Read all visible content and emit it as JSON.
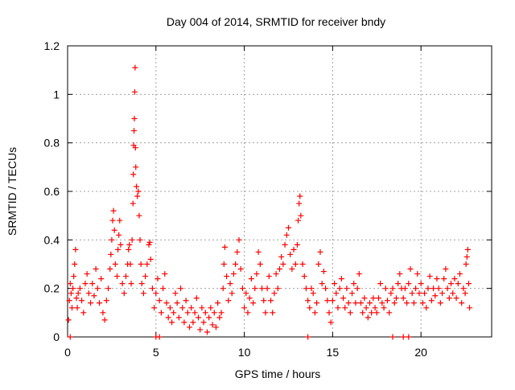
{
  "chart_data": {
    "type": "scatter",
    "title": "Day 004 of 2014, SRMTID for receiver bndy",
    "xlabel": "GPS time / hours",
    "ylabel": "SRMTID / TECUs",
    "xlim": [
      0,
      24
    ],
    "ylim": [
      0,
      1.2
    ],
    "x_ticks": [
      0,
      5,
      10,
      15,
      20
    ],
    "y_ticks": [
      0,
      0.2,
      0.4,
      0.6,
      0.8,
      1,
      1.2
    ],
    "x_tick_labels": [
      "0",
      "5",
      "10",
      "15",
      "20"
    ],
    "y_tick_labels": [
      "0",
      "0.2",
      "0.4",
      "0.6",
      "0.8",
      "1",
      "1.2"
    ],
    "grid": true,
    "marker": "+",
    "color": "#ff0000",
    "series": [
      {
        "name": "SRMTID",
        "points": [
          [
            0.05,
            0.07
          ],
          [
            0.1,
            0.15
          ],
          [
            0.15,
            0.22
          ],
          [
            0.2,
            0.18
          ],
          [
            0.25,
            0.12
          ],
          [
            0.3,
            0.2
          ],
          [
            0.35,
            0.25
          ],
          [
            0.4,
            0.3
          ],
          [
            0.45,
            0.36
          ],
          [
            0.5,
            0.16
          ],
          [
            0.55,
            0.12
          ],
          [
            0.6,
            0.18
          ],
          [
            0.7,
            0.2
          ],
          [
            0.8,
            0.15
          ],
          [
            0.9,
            0.1
          ],
          [
            1.0,
            0.22
          ],
          [
            1.1,
            0.26
          ],
          [
            1.2,
            0.18
          ],
          [
            1.3,
            0.14
          ],
          [
            1.4,
            0.22
          ],
          [
            1.5,
            0.17
          ],
          [
            1.6,
            0.28
          ],
          [
            1.7,
            0.2
          ],
          [
            1.8,
            0.14
          ],
          [
            1.9,
            0.24
          ],
          [
            2.0,
            0.1
          ],
          [
            2.1,
            0.07
          ],
          [
            2.2,
            0.15
          ],
          [
            2.3,
            0.2
          ],
          [
            2.4,
            0.28
          ],
          [
            2.45,
            0.34
          ],
          [
            2.5,
            0.4
          ],
          [
            2.55,
            0.48
          ],
          [
            2.6,
            0.52
          ],
          [
            2.65,
            0.44
          ],
          [
            2.7,
            0.3
          ],
          [
            2.8,
            0.25
          ],
          [
            2.85,
            0.36
          ],
          [
            2.9,
            0.42
          ],
          [
            2.95,
            0.48
          ],
          [
            3.0,
            0.38
          ],
          [
            3.1,
            0.22
          ],
          [
            3.2,
            0.18
          ],
          [
            3.3,
            0.25
          ],
          [
            3.4,
            0.3
          ],
          [
            3.45,
            0.36
          ],
          [
            3.5,
            0.38
          ],
          [
            3.55,
            0.3
          ],
          [
            3.6,
            0.22
          ],
          [
            3.65,
            0.4
          ],
          [
            3.7,
            0.55
          ],
          [
            3.72,
            0.67
          ],
          [
            3.74,
            0.79
          ],
          [
            3.76,
            0.85
          ],
          [
            3.78,
            0.9
          ],
          [
            3.8,
            1.01
          ],
          [
            3.82,
            1.11
          ],
          [
            3.84,
            0.78
          ],
          [
            3.86,
            0.7
          ],
          [
            3.9,
            0.62
          ],
          [
            3.95,
            0.58
          ],
          [
            4.0,
            0.6
          ],
          [
            4.05,
            0.5
          ],
          [
            4.1,
            0.4
          ],
          [
            4.15,
            0.3
          ],
          [
            4.2,
            0.22
          ],
          [
            4.3,
            0.18
          ],
          [
            4.4,
            0.25
          ],
          [
            4.5,
            0.3
          ],
          [
            4.6,
            0.38
          ],
          [
            4.65,
            0.39
          ],
          [
            4.7,
            0.32
          ],
          [
            4.8,
            0.2
          ],
          [
            4.9,
            0.12
          ],
          [
            5.0,
            0.18
          ],
          [
            5.1,
            0.24
          ],
          [
            5.2,
            0.15
          ],
          [
            5.3,
            0.1
          ],
          [
            5.4,
            0.2
          ],
          [
            5.5,
            0.26
          ],
          [
            5.6,
            0.14
          ],
          [
            5.7,
            0.08
          ],
          [
            5.8,
            0.12
          ],
          [
            5.9,
            0.06
          ],
          [
            6.0,
            0.1
          ],
          [
            6.1,
            0.18
          ],
          [
            6.2,
            0.14
          ],
          [
            6.3,
            0.08
          ],
          [
            6.4,
            0.2
          ],
          [
            6.5,
            0.12
          ],
          [
            6.6,
            0.06
          ],
          [
            6.7,
            0.15
          ],
          [
            6.8,
            0.1
          ],
          [
            6.9,
            0.04
          ],
          [
            7.0,
            0.12
          ],
          [
            7.1,
            0.06
          ],
          [
            7.2,
            0.1
          ],
          [
            7.3,
            0.16
          ],
          [
            7.4,
            0.08
          ],
          [
            7.5,
            0.03
          ],
          [
            7.6,
            0.12
          ],
          [
            7.7,
            0.06
          ],
          [
            7.8,
            0.1
          ],
          [
            7.9,
            0.02
          ],
          [
            8.0,
            0.08
          ],
          [
            8.1,
            0.12
          ],
          [
            8.2,
            0.05
          ],
          [
            8.3,
            0.1
          ],
          [
            8.4,
            0.04
          ],
          [
            8.5,
            0.14
          ],
          [
            8.6,
            0.08
          ],
          [
            8.7,
            0.1
          ],
          [
            8.8,
            0.2
          ],
          [
            8.85,
            0.3
          ],
          [
            8.9,
            0.37
          ],
          [
            9.0,
            0.25
          ],
          [
            9.1,
            0.15
          ],
          [
            9.2,
            0.22
          ],
          [
            9.3,
            0.18
          ],
          [
            9.4,
            0.26
          ],
          [
            9.5,
            0.3
          ],
          [
            9.6,
            0.35
          ],
          [
            9.7,
            0.4
          ],
          [
            9.8,
            0.28
          ],
          [
            9.9,
            0.2
          ],
          [
            10.0,
            0.12
          ],
          [
            10.1,
            0.18
          ],
          [
            10.2,
            0.1
          ],
          [
            10.3,
            0.16
          ],
          [
            10.4,
            0.24
          ],
          [
            10.5,
            0.14
          ],
          [
            10.6,
            0.2
          ],
          [
            10.7,
            0.26
          ],
          [
            10.8,
            0.35
          ],
          [
            10.9,
            0.3
          ],
          [
            11.0,
            0.2
          ],
          [
            11.1,
            0.15
          ],
          [
            11.2,
            0.1
          ],
          [
            11.3,
            0.2
          ],
          [
            11.4,
            0.25
          ],
          [
            11.5,
            0.15
          ],
          [
            11.6,
            0.1
          ],
          [
            11.7,
            0.18
          ],
          [
            11.8,
            0.26
          ],
          [
            11.9,
            0.2
          ],
          [
            12.0,
            0.28
          ],
          [
            12.1,
            0.33
          ],
          [
            12.2,
            0.3
          ],
          [
            12.3,
            0.38
          ],
          [
            12.4,
            0.42
          ],
          [
            12.5,
            0.45
          ],
          [
            12.6,
            0.34
          ],
          [
            12.7,
            0.28
          ],
          [
            12.8,
            0.36
          ],
          [
            12.9,
            0.3
          ],
          [
            13.0,
            0.38
          ],
          [
            13.05,
            0.48
          ],
          [
            13.1,
            0.55
          ],
          [
            13.15,
            0.58
          ],
          [
            13.2,
            0.5
          ],
          [
            13.3,
            0.3
          ],
          [
            13.4,
            0.25
          ],
          [
            13.5,
            0.2
          ],
          [
            13.6,
            0.15
          ],
          [
            13.7,
            0.12
          ],
          [
            13.8,
            0.2
          ],
          [
            13.9,
            0.18
          ],
          [
            14.0,
            0.1
          ],
          [
            14.1,
            0.14
          ],
          [
            14.2,
            0.3
          ],
          [
            14.3,
            0.35
          ],
          [
            14.4,
            0.22
          ],
          [
            14.5,
            0.27
          ],
          [
            14.6,
            0.2
          ],
          [
            14.7,
            0.15
          ],
          [
            14.8,
            0.1
          ],
          [
            14.9,
            0.06
          ],
          [
            15.0,
            0.15
          ],
          [
            15.1,
            0.22
          ],
          [
            15.2,
            0.18
          ],
          [
            15.3,
            0.12
          ],
          [
            15.4,
            0.2
          ],
          [
            15.5,
            0.24
          ],
          [
            15.6,
            0.16
          ],
          [
            15.7,
            0.12
          ],
          [
            15.8,
            0.2
          ],
          [
            15.9,
            0.14
          ],
          [
            16.0,
            0.1
          ],
          [
            16.1,
            0.18
          ],
          [
            16.2,
            0.22
          ],
          [
            16.3,
            0.14
          ],
          [
            16.4,
            0.2
          ],
          [
            16.5,
            0.26
          ],
          [
            16.6,
            0.14
          ],
          [
            16.7,
            0.1
          ],
          [
            16.8,
            0.16
          ],
          [
            16.9,
            0.12
          ],
          [
            17.0,
            0.08
          ],
          [
            17.1,
            0.14
          ],
          [
            17.2,
            0.1
          ],
          [
            17.3,
            0.16
          ],
          [
            17.4,
            0.12
          ],
          [
            17.5,
            0.1
          ],
          [
            17.6,
            0.16
          ],
          [
            17.7,
            0.22
          ],
          [
            17.8,
            0.14
          ],
          [
            17.9,
            0.12
          ],
          [
            18.0,
            0.2
          ],
          [
            18.1,
            0.15
          ],
          [
            18.2,
            0.1
          ],
          [
            18.3,
            0.18
          ],
          [
            18.4,
            0.2
          ],
          [
            18.5,
            0.14
          ],
          [
            18.6,
            0.16
          ],
          [
            18.7,
            0.22
          ],
          [
            18.8,
            0.26
          ],
          [
            18.9,
            0.2
          ],
          [
            19.0,
            0.16
          ],
          [
            19.1,
            0.2
          ],
          [
            19.2,
            0.14
          ],
          [
            19.3,
            0.22
          ],
          [
            19.4,
            0.28
          ],
          [
            19.5,
            0.18
          ],
          [
            19.6,
            0.14
          ],
          [
            19.7,
            0.2
          ],
          [
            19.8,
            0.26
          ],
          [
            19.9,
            0.18
          ],
          [
            20.0,
            0.22
          ],
          [
            20.1,
            0.14
          ],
          [
            20.2,
            0.18
          ],
          [
            20.3,
            0.12
          ],
          [
            20.4,
            0.2
          ],
          [
            20.5,
            0.25
          ],
          [
            20.6,
            0.15
          ],
          [
            20.7,
            0.2
          ],
          [
            20.8,
            0.17
          ],
          [
            20.9,
            0.24
          ],
          [
            21.0,
            0.2
          ],
          [
            21.1,
            0.14
          ],
          [
            21.2,
            0.18
          ],
          [
            21.3,
            0.24
          ],
          [
            21.4,
            0.28
          ],
          [
            21.5,
            0.2
          ],
          [
            21.6,
            0.16
          ],
          [
            21.7,
            0.22
          ],
          [
            21.8,
            0.18
          ],
          [
            21.9,
            0.24
          ],
          [
            22.0,
            0.16
          ],
          [
            22.1,
            0.22
          ],
          [
            22.2,
            0.26
          ],
          [
            22.3,
            0.14
          ],
          [
            22.4,
            0.2
          ],
          [
            22.5,
            0.18
          ],
          [
            22.55,
            0.3
          ],
          [
            22.6,
            0.33
          ],
          [
            22.65,
            0.36
          ],
          [
            22.7,
            0.22
          ],
          [
            22.75,
            0.12
          ],
          [
            0.15,
            0.0
          ],
          [
            5.0,
            0.0
          ],
          [
            5.2,
            0.0
          ],
          [
            13.6,
            0.0
          ],
          [
            18.4,
            0.0
          ],
          [
            19.0,
            0.0
          ],
          [
            19.3,
            0.0
          ]
        ]
      }
    ]
  }
}
